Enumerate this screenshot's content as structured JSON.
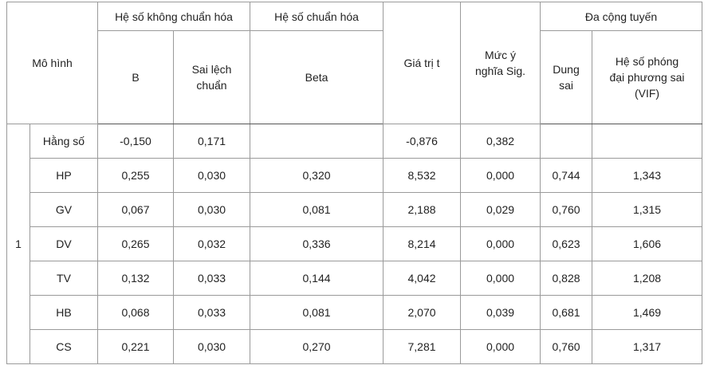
{
  "table": {
    "header": {
      "model": "Mô hình",
      "unstandardized": "Hệ số không chuẩn hóa",
      "standardized": "Hệ số chuẩn hóa",
      "t": "Giá trị t",
      "sig": "Mức ý nghĩa Sig.",
      "collinearity": "Đa cộng tuyến",
      "b": "B",
      "std_error": "Sai lệch chuẩn",
      "beta": "Beta",
      "tolerance": "Dung sai",
      "vif": "Hệ số phóng đại phương sai (VIF)"
    },
    "model_number": "1",
    "rows": [
      [
        "Hằng số",
        "-0,150",
        "0,171",
        null,
        "-0,876",
        "0,382",
        null,
        null
      ],
      [
        "HP",
        "0,255",
        "0,030",
        "0,320",
        "8,532",
        "0,000",
        "0,744",
        "1,343"
      ],
      [
        "GV",
        "0,067",
        "0,030",
        "0,081",
        "2,188",
        "0,029",
        "0,760",
        "1,315"
      ],
      [
        "DV",
        "0,265",
        "0,032",
        "0,336",
        "8,214",
        "0,000",
        "0,623",
        "1,606"
      ],
      [
        "TV",
        "0,132",
        "0,033",
        "0,144",
        "4,042",
        "0,000",
        "0,828",
        "1,208"
      ],
      [
        "HB",
        "0,068",
        "0,033",
        "0,081",
        "2,070",
        "0,039",
        "0,681",
        "1,469"
      ],
      [
        "CS",
        "0,221",
        "0,030",
        "0,270",
        "7,281",
        "0,000",
        "0,760",
        "1,317"
      ]
    ]
  }
}
